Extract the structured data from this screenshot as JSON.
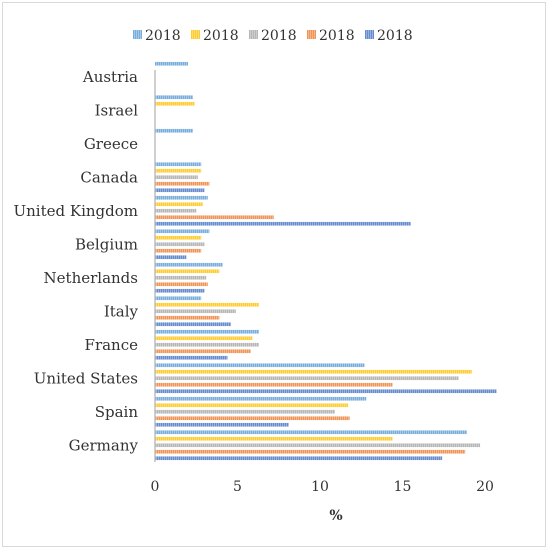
{
  "chart_data": {
    "type": "bar",
    "orientation": "horizontal",
    "categories": [
      "Germany",
      "Spain",
      "United States",
      "France",
      "Italy",
      "Netherlands",
      "Belgium",
      "United Kingdom",
      "Canada",
      "Greece",
      "Israel",
      "Austria"
    ],
    "series": [
      {
        "name": "2018",
        "color": "#5B9BD5",
        "values": [
          18.9,
          12.8,
          12.7,
          6.3,
          2.8,
          4.1,
          3.3,
          3.2,
          2.8,
          2.3,
          2.3,
          2.0
        ]
      },
      {
        "name": "2018",
        "color": "#FFC000",
        "values": [
          14.4,
          11.7,
          19.2,
          5.9,
          6.3,
          3.9,
          2.8,
          2.9,
          2.8,
          null,
          2.4,
          null
        ]
      },
      {
        "name": "2018",
        "color": "#A5A5A5",
        "values": [
          19.7,
          10.9,
          18.4,
          6.3,
          4.9,
          3.1,
          3.0,
          2.5,
          2.6,
          null,
          null,
          null
        ]
      },
      {
        "name": "2018",
        "color": "#ED7D31",
        "values": [
          18.8,
          11.8,
          14.4,
          5.8,
          3.9,
          3.2,
          2.8,
          7.2,
          3.3,
          null,
          null,
          null
        ]
      },
      {
        "name": "2018",
        "color": "#4472C4",
        "values": [
          17.4,
          8.1,
          20.7,
          4.4,
          4.6,
          3.0,
          1.9,
          15.5,
          3.0,
          null,
          null,
          null
        ]
      }
    ],
    "xlabel": "%",
    "ylabel": "",
    "xlim": [
      0,
      22
    ],
    "xticks": [
      0,
      5,
      10,
      15,
      20
    ],
    "grid": false,
    "legend_position": "top"
  }
}
